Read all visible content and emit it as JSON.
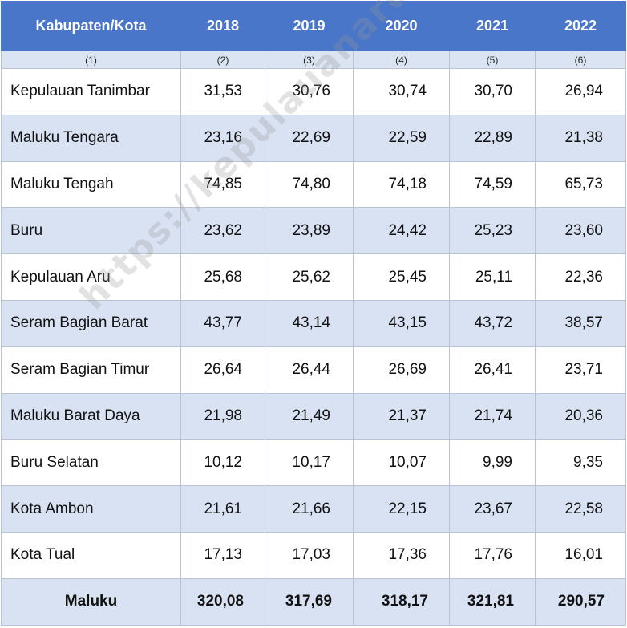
{
  "header": {
    "columns": [
      "Kabupaten/Kota",
      "2018",
      "2019",
      "2020",
      "2021",
      "2022"
    ],
    "numbers": [
      "(1)",
      "(2)",
      "(3)",
      "(4)",
      "(5)",
      "(6)"
    ]
  },
  "rows": [
    {
      "name": "Kepulauan Tanimbar",
      "values": [
        "31,53",
        "30,76",
        "30,74",
        "30,70",
        "26,94"
      ]
    },
    {
      "name": "Maluku Tengara",
      "values": [
        "23,16",
        "22,69",
        "22,59",
        "22,89",
        "21,38"
      ]
    },
    {
      "name": "Maluku Tengah",
      "values": [
        "74,85",
        "74,80",
        "74,18",
        "74,59",
        "65,73"
      ]
    },
    {
      "name": "Buru",
      "values": [
        "23,62",
        "23,89",
        "24,42",
        "25,23",
        "23,60"
      ]
    },
    {
      "name": "Kepulauan Aru",
      "values": [
        "25,68",
        "25,62",
        "25,45",
        "25,11",
        "22,36"
      ]
    },
    {
      "name": "Seram Bagian Barat",
      "values": [
        "43,77",
        "43,14",
        "43,15",
        "43,72",
        "38,57"
      ]
    },
    {
      "name": "Seram Bagian Timur",
      "values": [
        "26,64",
        "26,44",
        "26,69",
        "26,41",
        "23,71"
      ]
    },
    {
      "name": "Maluku Barat Daya",
      "values": [
        "21,98",
        "21,49",
        "21,37",
        "21,74",
        "20,36"
      ]
    },
    {
      "name": "Buru Selatan",
      "values": [
        "10,12",
        "10,17",
        "10,07",
        "9,99",
        "9,35"
      ]
    },
    {
      "name": "Kota Ambon",
      "values": [
        "21,61",
        "21,66",
        "22,15",
        "23,67",
        "22,58"
      ]
    },
    {
      "name": "Kota Tual",
      "values": [
        "17,13",
        "17,03",
        "17,36",
        "17,76",
        "16,01"
      ]
    }
  ],
  "total": {
    "name": "Maluku",
    "values": [
      "320,08",
      "317,69",
      "318,17",
      "321,81",
      "290,57"
    ]
  },
  "watermark": "https://kepulauanarukab.bps.go.id",
  "colors": {
    "header_bg": "#4a76c9",
    "stripe_bg": "#d9e2f3"
  }
}
